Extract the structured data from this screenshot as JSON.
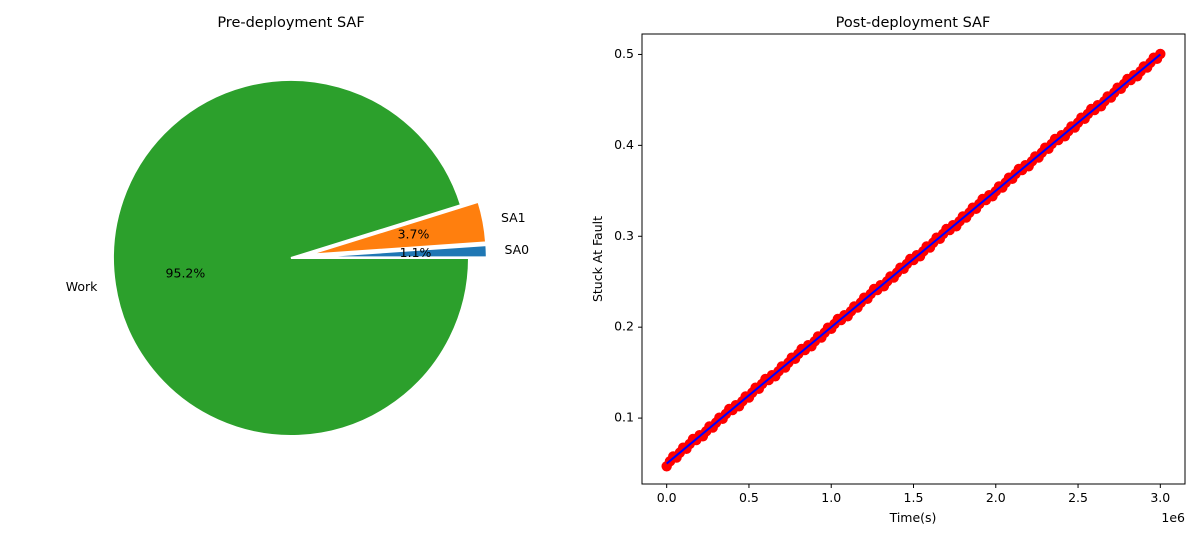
{
  "chart_data": [
    {
      "type": "pie",
      "title": "Pre-deployment SAF",
      "slices": [
        {
          "label": "SA0",
          "value": 1.1,
          "pct_label": "1.1%",
          "color": "#1f77b4",
          "exploded": true
        },
        {
          "label": "SA1",
          "value": 3.7,
          "pct_label": "3.7%",
          "color": "#ff7f0e",
          "exploded": true
        },
        {
          "label": "Work",
          "value": 95.2,
          "pct_label": "95.2%",
          "color": "#2ca02c",
          "exploded": false
        }
      ]
    },
    {
      "type": "scatter",
      "title": "Post-deployment SAF",
      "xlabel": "Time(s)",
      "ylabel": "Stuck At Fault",
      "x_offset_label": "1e6",
      "xlim": [
        -0.15,
        3.15
      ],
      "ylim": [
        0.0275,
        0.5225
      ],
      "xticks": [
        0.0,
        0.5,
        1.0,
        1.5,
        2.0,
        2.5,
        3.0
      ],
      "xtick_labels": [
        "0.0",
        "0.5",
        "1.0",
        "1.5",
        "2.0",
        "2.5",
        "3.0"
      ],
      "yticks": [
        0.1,
        0.2,
        0.3,
        0.4,
        0.5
      ],
      "ytick_labels": [
        "0.1",
        "0.2",
        "0.3",
        "0.4",
        "0.5"
      ],
      "grid": false,
      "series": [
        {
          "kind": "points",
          "color": "#ff0000",
          "x_range": [
            0.0,
            3.0
          ],
          "y_range": [
            0.05,
            0.5
          ],
          "n_points": 151
        },
        {
          "kind": "line",
          "color": "#0000ff",
          "x": [
            0.0,
            3.0
          ],
          "y": [
            0.05,
            0.5
          ]
        }
      ]
    }
  ]
}
